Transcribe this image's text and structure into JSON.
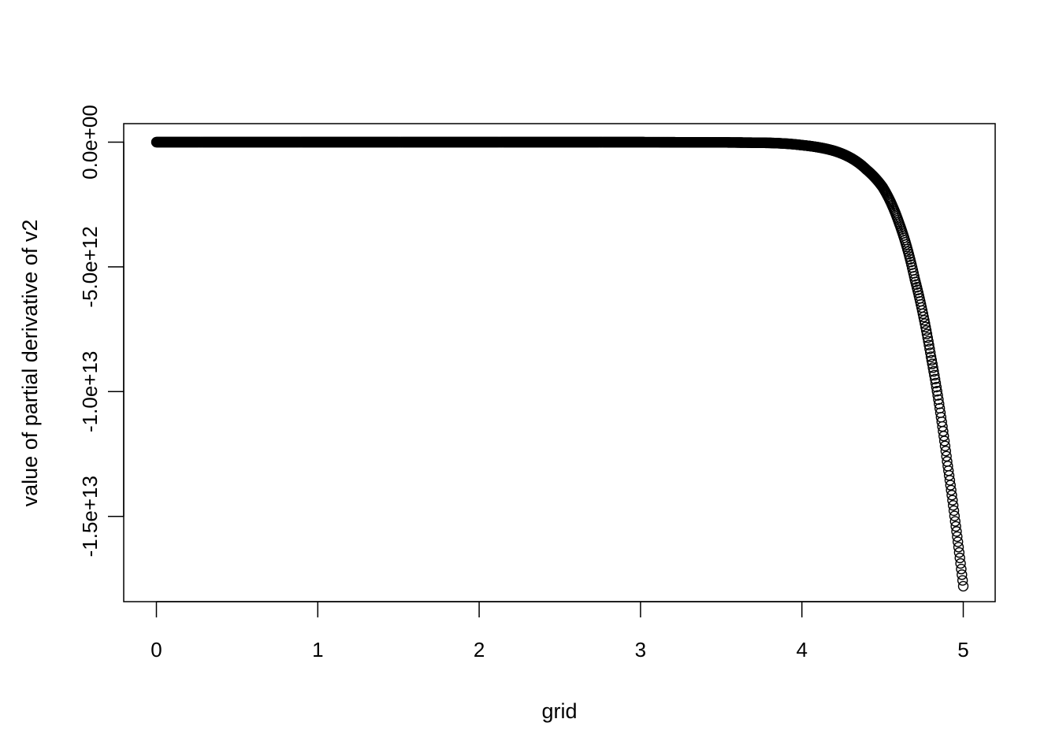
{
  "chart_data": {
    "type": "scatter",
    "title": "",
    "xlabel": "grid",
    "ylabel": "value of partial derivative of v2",
    "xlim": [
      -0.2,
      5.2
    ],
    "ylim": [
      -18200000000000,
      700000000000
    ],
    "x_ticks": [
      0,
      1,
      2,
      3,
      4,
      5
    ],
    "x_tick_labels": [
      "0",
      "1",
      "2",
      "3",
      "4",
      "5"
    ],
    "y_ticks": [
      0,
      -5000000000000,
      -10000000000000,
      -15000000000000
    ],
    "y_tick_labels": [
      "0.0e+00",
      "-5.0e+12",
      "-1.0e+13",
      "-1.5e+13"
    ],
    "grid": false,
    "marker": "open-circle",
    "color": "#000000",
    "x_range": [
      0,
      5
    ],
    "points_sampled": {
      "x": [
        0,
        1,
        2,
        3,
        3.5,
        3.8,
        4.0,
        4.2,
        4.4,
        4.5,
        4.6,
        4.7,
        4.8,
        4.9,
        4.95,
        5.0
      ],
      "y": [
        0,
        0,
        0,
        0,
        -10000000000,
        -30000000000,
        -120000000000,
        -350000000000,
        -1100000000000,
        -1800000000000,
        -3200000000000,
        -5500000000000,
        -8600000000000,
        -12800000000000,
        -15200000000000,
        -17800000000000
      ]
    }
  }
}
